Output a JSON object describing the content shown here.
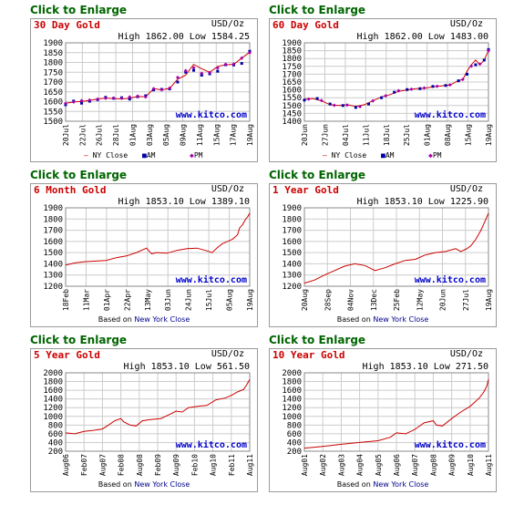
{
  "link_label": "Click to Enlarge",
  "colors": {
    "line": "#cc0000",
    "am": "#0000aa",
    "pm": "#aa00aa",
    "wm": "#0000cc",
    "grid": "#cccccc"
  },
  "watermark": "www.kitco.com",
  "based_prefix": "Based on",
  "based_link": "New York Close",
  "legend": {
    "ny": "NY Close",
    "am": "AM",
    "pm": "PM"
  },
  "chart_data": [
    {
      "type": "line",
      "title": "30 Day Gold",
      "unit": "USD/Oz",
      "high_low": "High 1862.00 Low 1584.25",
      "ylim": [
        1500,
        1900
      ],
      "yticks": [
        1500,
        1550,
        1600,
        1650,
        1700,
        1750,
        1800,
        1850,
        1900
      ],
      "xticks": [
        "20Jul",
        "22Jul",
        "26Jul",
        "28Jul",
        "01Aug",
        "03Aug",
        "05Aug",
        "09Aug",
        "11Aug",
        "15Aug",
        "17Aug",
        "19Aug"
      ],
      "x_range": [
        0,
        23
      ],
      "series": [
        {
          "name": "NY Close",
          "values": [
            [
              0,
              1592
            ],
            [
              1,
              1598
            ],
            [
              2,
              1601
            ],
            [
              3,
              1606
            ],
            [
              4,
              1614
            ],
            [
              5,
              1618
            ],
            [
              6,
              1616
            ],
            [
              7,
              1614
            ],
            [
              8,
              1617
            ],
            [
              9,
              1626
            ],
            [
              10,
              1625
            ],
            [
              11,
              1666
            ],
            [
              12,
              1660
            ],
            [
              13,
              1668
            ],
            [
              14,
              1715
            ],
            [
              15,
              1735
            ],
            [
              16,
              1790
            ],
            [
              17,
              1768
            ],
            [
              18,
              1750
            ],
            [
              19,
              1780
            ],
            [
              20,
              1788
            ],
            [
              21,
              1790
            ],
            [
              22,
              1822
            ],
            [
              23,
              1852
            ]
          ]
        },
        {
          "name": "AM",
          "values": [
            [
              0,
              1584
            ],
            [
              1,
              1603
            ],
            [
              2,
              1592
            ],
            [
              3,
              1602
            ],
            [
              4,
              1610
            ],
            [
              5,
              1622
            ],
            [
              6,
              1617
            ],
            [
              7,
              1620
            ],
            [
              8,
              1613
            ],
            [
              9,
              1625
            ],
            [
              10,
              1630
            ],
            [
              11,
              1660
            ],
            [
              12,
              1663
            ],
            [
              13,
              1665
            ],
            [
              14,
              1700
            ],
            [
              15,
              1750
            ],
            [
              16,
              1760
            ],
            [
              17,
              1735
            ],
            [
              18,
              1742
            ],
            [
              19,
              1755
            ],
            [
              20,
              1788
            ],
            [
              21,
              1787
            ],
            [
              22,
              1795
            ],
            [
              23,
              1857
            ]
          ]
        },
        {
          "name": "PM",
          "values": [
            [
              0,
              1591
            ],
            [
              1,
              1598
            ],
            [
              2,
              1605
            ],
            [
              3,
              1608
            ],
            [
              4,
              1613
            ],
            [
              5,
              1617
            ],
            [
              6,
              1618
            ],
            [
              7,
              1617
            ],
            [
              8,
              1624
            ],
            [
              9,
              1628
            ],
            [
              10,
              1624
            ],
            [
              11,
              1666
            ],
            [
              12,
              1661
            ],
            [
              13,
              1669
            ],
            [
              14,
              1723
            ],
            [
              15,
              1758
            ],
            [
              16,
              1773
            ],
            [
              17,
              1745
            ],
            [
              18,
              1748
            ],
            [
              19,
              1772
            ],
            [
              20,
              1790
            ],
            [
              21,
              1792
            ],
            [
              22,
              1822
            ],
            [
              23,
              1850
            ]
          ]
        }
      ]
    },
    {
      "type": "line",
      "title": "60 Day Gold",
      "unit": "USD/Oz",
      "high_low": "High 1862.00 Low 1483.00",
      "ylim": [
        1400,
        1900
      ],
      "yticks": [
        1400,
        1450,
        1500,
        1550,
        1600,
        1650,
        1700,
        1750,
        1800,
        1850,
        1900
      ],
      "xticks": [
        "20Jun",
        "27Jun",
        "04Jul",
        "11Jul",
        "18Jul",
        "25Jul",
        "01Aug",
        "08Aug",
        "15Aug",
        "19Aug"
      ],
      "x_range": [
        0,
        43
      ],
      "series": [
        {
          "name": "NY Close",
          "values": [
            [
              0,
              1540
            ],
            [
              2,
              1545
            ],
            [
              4,
              1530
            ],
            [
              6,
              1505
            ],
            [
              8,
              1500
            ],
            [
              10,
              1505
            ],
            [
              12,
              1495
            ],
            [
              14,
              1505
            ],
            [
              16,
              1530
            ],
            [
              18,
              1555
            ],
            [
              20,
              1570
            ],
            [
              22,
              1590
            ],
            [
              24,
              1600
            ],
            [
              26,
              1608
            ],
            [
              28,
              1610
            ],
            [
              30,
              1620
            ],
            [
              32,
              1625
            ],
            [
              34,
              1630
            ],
            [
              36,
              1660
            ],
            [
              37,
              1665
            ],
            [
              38,
              1720
            ],
            [
              39,
              1760
            ],
            [
              40,
              1790
            ],
            [
              41,
              1760
            ],
            [
              42,
              1790
            ],
            [
              43,
              1850
            ]
          ]
        },
        {
          "name": "AM",
          "values": [
            [
              0,
              1535
            ],
            [
              3,
              1545
            ],
            [
              6,
              1510
            ],
            [
              9,
              1500
            ],
            [
              12,
              1488
            ],
            [
              15,
              1510
            ],
            [
              18,
              1550
            ],
            [
              21,
              1585
            ],
            [
              24,
              1602
            ],
            [
              27,
              1608
            ],
            [
              30,
              1622
            ],
            [
              33,
              1628
            ],
            [
              36,
              1658
            ],
            [
              38,
              1700
            ],
            [
              40,
              1760
            ],
            [
              42,
              1790
            ],
            [
              43,
              1857
            ]
          ]
        },
        {
          "name": "PM",
          "values": [
            [
              1,
              1541
            ],
            [
              4,
              1532
            ],
            [
              7,
              1502
            ],
            [
              10,
              1503
            ],
            [
              13,
              1493
            ],
            [
              16,
              1530
            ],
            [
              19,
              1562
            ],
            [
              22,
              1595
            ],
            [
              25,
              1604
            ],
            [
              28,
              1612
            ],
            [
              31,
              1623
            ],
            [
              34,
              1632
            ],
            [
              37,
              1667
            ],
            [
              39,
              1752
            ],
            [
              41,
              1765
            ],
            [
              43,
              1850
            ]
          ]
        }
      ]
    },
    {
      "type": "line",
      "title": "6 Month Gold",
      "unit": "USD/Oz",
      "high_low": "High 1853.10 Low 1389.10",
      "ylim": [
        1200,
        1900
      ],
      "yticks": [
        1200,
        1300,
        1400,
        1500,
        1600,
        1700,
        1800,
        1900
      ],
      "xticks": [
        "18Feb",
        "11Mar",
        "01Apr",
        "22Apr",
        "13May",
        "03Jun",
        "24Jun",
        "15Jul",
        "05Aug",
        "19Aug"
      ],
      "x_range": [
        0,
        182
      ],
      "series": [
        {
          "name": "NY Close",
          "values": [
            [
              0,
              1390
            ],
            [
              10,
              1410
            ],
            [
              20,
              1420
            ],
            [
              30,
              1425
            ],
            [
              40,
              1430
            ],
            [
              50,
              1455
            ],
            [
              60,
              1470
            ],
            [
              70,
              1500
            ],
            [
              80,
              1540
            ],
            [
              85,
              1490
            ],
            [
              90,
              1500
            ],
            [
              100,
              1495
            ],
            [
              110,
              1520
            ],
            [
              120,
              1535
            ],
            [
              130,
              1540
            ],
            [
              140,
              1515
            ],
            [
              145,
              1500
            ],
            [
              150,
              1545
            ],
            [
              155,
              1580
            ],
            [
              160,
              1600
            ],
            [
              165,
              1620
            ],
            [
              170,
              1660
            ],
            [
              172,
              1720
            ],
            [
              175,
              1750
            ],
            [
              178,
              1800
            ],
            [
              180,
              1820
            ],
            [
              182,
              1853
            ]
          ]
        }
      ]
    },
    {
      "type": "line",
      "title": "1 Year Gold",
      "unit": "USD/Oz",
      "high_low": "High 1853.10 Low 1225.90",
      "ylim": [
        1200,
        1900
      ],
      "yticks": [
        1200,
        1300,
        1400,
        1500,
        1600,
        1700,
        1800,
        1900
      ],
      "xticks": [
        "20Aug",
        "28Sep",
        "04Nov",
        "13Dec",
        "25Feb",
        "12May",
        "20Jun",
        "27Jul",
        "19Aug"
      ],
      "x_range": [
        0,
        365
      ],
      "series": [
        {
          "name": "NY Close",
          "values": [
            [
              0,
              1228
            ],
            [
              20,
              1255
            ],
            [
              40,
              1300
            ],
            [
              60,
              1340
            ],
            [
              80,
              1380
            ],
            [
              100,
              1400
            ],
            [
              120,
              1385
            ],
            [
              140,
              1340
            ],
            [
              160,
              1365
            ],
            [
              180,
              1400
            ],
            [
              200,
              1430
            ],
            [
              220,
              1440
            ],
            [
              240,
              1480
            ],
            [
              260,
              1500
            ],
            [
              280,
              1510
            ],
            [
              300,
              1535
            ],
            [
              310,
              1510
            ],
            [
              320,
              1530
            ],
            [
              330,
              1560
            ],
            [
              340,
              1620
            ],
            [
              350,
              1700
            ],
            [
              355,
              1750
            ],
            [
              360,
              1800
            ],
            [
              365,
              1853
            ]
          ]
        }
      ]
    },
    {
      "type": "line",
      "title": "5 Year Gold",
      "unit": "USD/Oz",
      "high_low": "High 1853.10 Low 561.50",
      "ylim": [
        200,
        2000
      ],
      "yticks": [
        200,
        400,
        600,
        800,
        1000,
        1200,
        1400,
        1600,
        1800,
        2000
      ],
      "xticks": [
        "Aug06",
        "Feb07",
        "Aug07",
        "Feb08",
        "Aug08",
        "Feb09",
        "Aug09",
        "Feb10",
        "Aug10",
        "Feb11",
        "Aug11"
      ],
      "x_range": [
        0,
        60
      ],
      "series": [
        {
          "name": "NY Close",
          "values": [
            [
              0,
              620
            ],
            [
              3,
              600
            ],
            [
              6,
              655
            ],
            [
              9,
              680
            ],
            [
              12,
              710
            ],
            [
              14,
              800
            ],
            [
              16,
              900
            ],
            [
              18,
              950
            ],
            [
              19,
              870
            ],
            [
              21,
              800
            ],
            [
              23,
              780
            ],
            [
              25,
              900
            ],
            [
              28,
              930
            ],
            [
              31,
              950
            ],
            [
              34,
              1050
            ],
            [
              36,
              1120
            ],
            [
              38,
              1100
            ],
            [
              40,
              1200
            ],
            [
              43,
              1230
            ],
            [
              46,
              1250
            ],
            [
              49,
              1380
            ],
            [
              52,
              1420
            ],
            [
              54,
              1480
            ],
            [
              56,
              1560
            ],
            [
              58,
              1620
            ],
            [
              59,
              1720
            ],
            [
              60,
              1850
            ]
          ]
        }
      ]
    },
    {
      "type": "line",
      "title": "10 Year Gold",
      "unit": "USD/Oz",
      "high_low": "High 1853.10 Low 271.50",
      "ylim": [
        200,
        2000
      ],
      "yticks": [
        200,
        400,
        600,
        800,
        1000,
        1200,
        1400,
        1600,
        1800,
        2000
      ],
      "xticks": [
        "Aug01",
        "Aug02",
        "Aug03",
        "Aug04",
        "Aug05",
        "Aug06",
        "Aug07",
        "Aug08",
        "Aug09",
        "Aug10",
        "Aug11"
      ],
      "x_range": [
        0,
        120
      ],
      "series": [
        {
          "name": "NY Close",
          "values": [
            [
              0,
              272
            ],
            [
              12,
              310
            ],
            [
              24,
              360
            ],
            [
              36,
              400
            ],
            [
              48,
              440
            ],
            [
              56,
              520
            ],
            [
              60,
              620
            ],
            [
              66,
              600
            ],
            [
              72,
              700
            ],
            [
              78,
              850
            ],
            [
              84,
              900
            ],
            [
              86,
              800
            ],
            [
              90,
              780
            ],
            [
              96,
              950
            ],
            [
              102,
              1100
            ],
            [
              108,
              1230
            ],
            [
              114,
              1420
            ],
            [
              117,
              1560
            ],
            [
              119,
              1700
            ],
            [
              120,
              1853
            ]
          ]
        }
      ]
    }
  ]
}
